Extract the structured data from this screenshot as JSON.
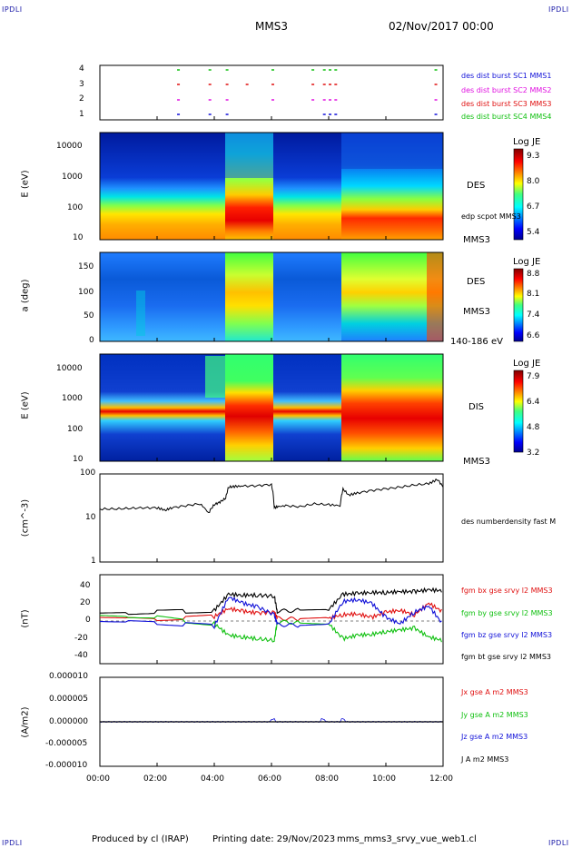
{
  "header": {
    "corner_tl": "IPDLI",
    "corner_tr": "IPDLI",
    "corner_bl": "IPDLI",
    "corner_br": "IPDLI",
    "spacecraft": "MMS3",
    "datetime": "02/Nov/2017 00:00"
  },
  "footer": {
    "produced_by": "Produced by cl (IRAP)",
    "printing_date": "Printing date: 29/Nov/2023",
    "filename": "mms_mms3_srvy_vue_web1.cl"
  },
  "time_axis": {
    "ticks": [
      "00:00",
      "02:00",
      "04:00",
      "06:00",
      "08:00",
      "10:00",
      "12:00"
    ],
    "range_hours": [
      0,
      12
    ]
  },
  "panels": {
    "burst": {
      "yticks": [
        "4",
        "3",
        "2",
        "1"
      ],
      "labels": [
        {
          "text": "des dist burst SC1 MMS1",
          "color": "#1010d8"
        },
        {
          "text": "des dist burst SC2 MMS2",
          "color": "#e010e0"
        },
        {
          "text": "des dist burst SC3 MMS3",
          "color": "#e01010"
        },
        {
          "text": "des dist burst SC4 MMS4",
          "color": "#10c010"
        }
      ]
    },
    "des_energy": {
      "ylabel": "E (eV)",
      "yticks": [
        "10000",
        "1000",
        "100",
        "10"
      ],
      "species": "DES",
      "annot": "edp scpot MMS3",
      "sc": "MMS3",
      "cbar_title": "Log JE",
      "cbar_ticks": [
        "9.3",
        "8.0",
        "6.7",
        "5.4"
      ]
    },
    "des_pitch": {
      "ylabel": "a (deg)",
      "yticks": [
        "150",
        "100",
        "50",
        "0"
      ],
      "species": "DES",
      "sc": "MMS3",
      "energy_range": "140-186 eV",
      "cbar_title": "Log JE",
      "cbar_ticks": [
        "8.8",
        "8.1",
        "7.4",
        "6.6"
      ]
    },
    "dis_energy": {
      "ylabel": "E (eV)",
      "yticks": [
        "10000",
        "1000",
        "100",
        "10"
      ],
      "species": "DIS",
      "sc": "MMS3",
      "cbar_title": "Log JE",
      "cbar_ticks": [
        "7.9",
        "6.4",
        "4.8",
        "3.2"
      ]
    },
    "density": {
      "ylabel": "(cm^-3)",
      "yticks": [
        "100",
        "10",
        "1"
      ],
      "legend": "des numberdensity fast M"
    },
    "bfield": {
      "ylabel": "(nT)",
      "yticks": [
        "40",
        "20",
        "0",
        "-20",
        "-40"
      ],
      "legend": [
        {
          "text": "fgm bx gse srvy l2 MMS3",
          "color": "#e01010"
        },
        {
          "text": "fgm by gse srvy l2 MMS3",
          "color": "#10c010"
        },
        {
          "text": "fgm bz gse srvy l2 MMS3",
          "color": "#1010d8"
        },
        {
          "text": "fgm bt gse srvy l2 MMS3",
          "color": "#000000"
        }
      ]
    },
    "current": {
      "ylabel": "(A/m2)",
      "yticks": [
        "0.000010",
        "0.000005",
        "0.000000",
        "-0.000005",
        "-0.000010"
      ],
      "legend": [
        {
          "text": "Jx gse A m2 MMS3",
          "color": "#e01010"
        },
        {
          "text": "Jy gse A m2 MMS3",
          "color": "#10c010"
        },
        {
          "text": "Jz gse A m2 MMS3",
          "color": "#1010d8"
        },
        {
          "text": "J A m2 MMS3",
          "color": "#000000"
        }
      ]
    }
  },
  "chart_data": [
    {
      "type": "scatter",
      "name": "burst availability",
      "x_unit": "hours",
      "series": [
        {
          "name": "des dist burst SC1 MMS1",
          "level": 4,
          "x": [
            2.7,
            3.8,
            4.4,
            6.0,
            7.4,
            7.8,
            8.0,
            8.2,
            11.7
          ]
        },
        {
          "name": "des dist burst SC2 MMS2",
          "level": 3,
          "x": [
            2.7,
            3.8,
            4.4,
            5.1,
            6.0,
            7.4,
            7.8,
            8.0,
            8.2,
            11.7
          ]
        },
        {
          "name": "des dist burst SC3 MMS3",
          "level": 2,
          "x": [
            2.7,
            3.8,
            4.4,
            6.0,
            7.4,
            7.8,
            8.0,
            8.2,
            11.7
          ]
        },
        {
          "name": "des dist burst SC4 MMS4",
          "level": 1,
          "x": [
            2.7,
            3.8,
            4.4,
            7.8,
            8.0,
            8.2,
            11.7
          ]
        }
      ]
    },
    {
      "type": "heatmap",
      "name": "DES energy spectrogram",
      "x_unit": "hours",
      "y_unit": "eV (log)",
      "ylim": [
        10,
        30000
      ],
      "colorbar": [
        5.4,
        9.3
      ],
      "intervals": [
        {
          "x": [
            0.0,
            4.5
          ],
          "core_log_e": 1.6,
          "width": 0.55
        },
        {
          "x": [
            4.5,
            6.1
          ],
          "core_log_e": 1.85,
          "width": 0.45
        },
        {
          "x": [
            6.1,
            8.5
          ],
          "core_log_e": 1.6,
          "width": 0.55
        },
        {
          "x": [
            8.5,
            12.0
          ],
          "core_log_e": 2.0,
          "width": 0.5
        }
      ]
    },
    {
      "type": "heatmap",
      "name": "DES pitch angle",
      "x_unit": "hours",
      "y_unit": "deg",
      "ylim": [
        0,
        180
      ],
      "colorbar": [
        6.6,
        8.8
      ]
    },
    {
      "type": "heatmap",
      "name": "DIS energy spectrogram",
      "x_unit": "hours",
      "y_unit": "eV (log)",
      "ylim": [
        10,
        30000
      ],
      "colorbar": [
        3.2,
        7.9
      ],
      "intervals": [
        {
          "x": [
            0.0,
            4.5
          ],
          "core_log_e": 2.6,
          "width": 0.12
        },
        {
          "x": [
            4.5,
            6.1
          ],
          "core_log_e": 2.55,
          "width": 0.55
        },
        {
          "x": [
            6.1,
            8.5
          ],
          "core_log_e": 2.6,
          "width": 0.14
        },
        {
          "x": [
            8.5,
            12.0
          ],
          "core_log_e": 2.5,
          "width": 0.55
        }
      ]
    },
    {
      "type": "line",
      "name": "des numberdensity",
      "x_unit": "hours",
      "y_unit": "cm^-3 (log)",
      "ylim": [
        1,
        100
      ],
      "series": [
        {
          "name": "des numberdensity fast M",
          "x": [
            0.0,
            0.5,
            1.0,
            1.5,
            2.0,
            2.3,
            2.5,
            3.0,
            3.5,
            3.8,
            4.0,
            4.2,
            4.4,
            4.5,
            4.7,
            5.0,
            5.5,
            6.0,
            6.1,
            6.2,
            6.5,
            7.0,
            7.5,
            8.0,
            8.4,
            8.5,
            8.7,
            9.0,
            9.5,
            10.0,
            10.5,
            11.0,
            11.5,
            11.8,
            12.0
          ],
          "y": [
            16,
            16,
            16.5,
            17,
            17,
            15,
            17,
            19,
            21,
            13,
            20,
            23,
            28,
            50,
            52,
            53,
            54,
            58,
            17,
            18,
            19,
            18,
            21,
            20,
            19,
            45,
            33,
            37,
            42,
            46,
            50,
            56,
            60,
            75,
            50
          ]
        }
      ]
    },
    {
      "type": "line",
      "name": "fgm magnetic field",
      "x_unit": "hours",
      "y_unit": "nT",
      "ylim": [
        -50,
        50
      ],
      "series": [
        {
          "name": "fgm bx gse srvy l2 MMS3",
          "x": [
            0,
            1,
            2,
            3,
            4,
            4.5,
            5,
            5.5,
            6.1,
            6.2,
            7,
            8,
            8.5,
            9,
            9.5,
            10,
            10.5,
            11,
            11.5,
            12
          ],
          "y": [
            2,
            1,
            0,
            1,
            3,
            12,
            9,
            7,
            8,
            1,
            0,
            1,
            5,
            6,
            2,
            8,
            10,
            5,
            18,
            8
          ]
        },
        {
          "name": "fgm by gse srvy l2 MMS3",
          "x": [
            0,
            1,
            2,
            3,
            4,
            4.5,
            5,
            5.5,
            6.1,
            6.2,
            7,
            8,
            8.5,
            9,
            9.5,
            10,
            10.5,
            11,
            11.5,
            12
          ],
          "y": [
            4,
            3,
            2,
            -2,
            -5,
            -18,
            -20,
            -22,
            -24,
            -3,
            -4,
            -5,
            -22,
            -18,
            -17,
            -14,
            -12,
            -10,
            -20,
            -24
          ]
        },
        {
          "name": "fgm bz gse srvy l2 MMS3",
          "x": [
            0,
            1,
            2,
            3,
            4,
            4.5,
            5,
            5.5,
            6.1,
            6.2,
            7,
            8,
            8.5,
            9,
            9.5,
            10,
            10.5,
            11,
            11.5,
            12
          ],
          "y": [
            -2,
            -3,
            -4,
            -6,
            -8,
            25,
            18,
            14,
            5,
            -6,
            -7,
            -6,
            20,
            22,
            18,
            2,
            -5,
            8,
            15,
            -6
          ]
        },
        {
          "name": "fgm bt gse srvy l2 MMS3",
          "x": [
            0,
            1,
            2,
            3,
            4,
            4.5,
            5,
            5.5,
            6.1,
            6.2,
            7,
            8,
            8.5,
            9,
            9.5,
            10,
            10.5,
            11,
            11.5,
            12
          ],
          "y": [
            6,
            7,
            8,
            9,
            10,
            28,
            27,
            27,
            26,
            9,
            10,
            11,
            28,
            29,
            30,
            30,
            31,
            31,
            33,
            32
          ]
        }
      ]
    },
    {
      "type": "line",
      "name": "current density",
      "x_unit": "hours",
      "y_unit": "A/m2",
      "ylim": [
        -1e-05,
        1e-05
      ],
      "series": [
        {
          "name": "J A m2 MMS3",
          "x": [
            0,
            12
          ],
          "y": [
            0,
            0
          ]
        }
      ]
    }
  ]
}
